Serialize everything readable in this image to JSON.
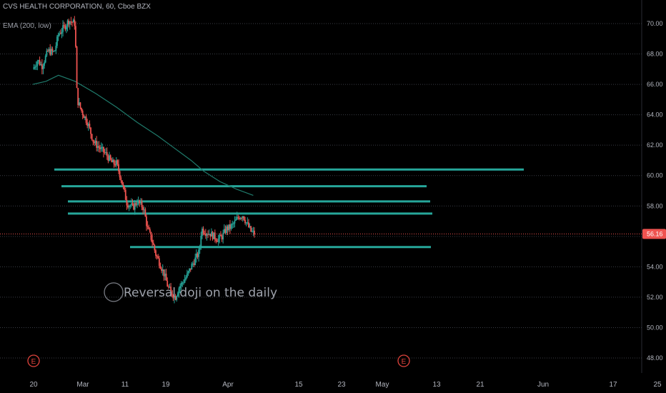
{
  "header": {
    "title": "CVS HEALTH CORPORATION, 60, Cboe BZX",
    "indicator": "EMA (200, low)"
  },
  "colors": {
    "background": "#000000",
    "up": "#26a69a",
    "down": "#ef5350",
    "ema": "#1f7a6b",
    "level": "#26a69a",
    "price_line": "#ef5350",
    "earnings": "#e0433c"
  },
  "chart_data": {
    "type": "candlestick",
    "ylim": [
      47,
      71
    ],
    "y_ticks": [
      "48.00",
      "50.00",
      "52.00",
      "54.00",
      "56.00",
      "58.00",
      "60.00",
      "62.00",
      "64.00",
      "66.00",
      "68.00",
      "70.00"
    ],
    "x_ticks": [
      "20",
      "Mar",
      "11",
      "19",
      "Apr",
      "15",
      "23",
      "May",
      "13",
      "21",
      "Jun",
      "17",
      "25"
    ],
    "grid": "horizontal",
    "last_price": 56.16,
    "last_price_label": "56.16",
    "annotation": "Reversal doji on the daily",
    "annotation_price": 52.0,
    "earnings_markers": [
      {
        "label": "E",
        "near_tick": "20"
      },
      {
        "label": "E",
        "near_tick": "May"
      }
    ],
    "levels": [
      60.4,
      59.3,
      58.3,
      57.5,
      55.3
    ],
    "ema_path": [
      [
        -0.02,
        66.0
      ],
      [
        0.3,
        66.2
      ],
      [
        0.6,
        66.6
      ],
      [
        1.0,
        66.2
      ],
      [
        1.5,
        65.4
      ],
      [
        2.0,
        64.5
      ],
      [
        2.5,
        63.5
      ],
      [
        3.0,
        62.6
      ],
      [
        3.4,
        61.8
      ],
      [
        3.8,
        61.0
      ],
      [
        4.1,
        60.3
      ],
      [
        4.5,
        59.6
      ],
      [
        4.9,
        59.1
      ],
      [
        5.3,
        58.7
      ]
    ],
    "price_path": [
      [
        -0.02,
        67.0
      ],
      [
        0.1,
        67.6
      ],
      [
        0.2,
        67.2
      ],
      [
        0.35,
        68.2
      ],
      [
        0.5,
        68.1
      ],
      [
        0.6,
        69.3
      ],
      [
        0.75,
        69.8
      ],
      [
        0.85,
        70.2
      ],
      [
        1.0,
        70.0
      ],
      [
        1.05,
        65.0
      ],
      [
        1.15,
        64.3
      ],
      [
        1.3,
        63.5
      ],
      [
        1.45,
        62.2
      ],
      [
        1.6,
        61.8
      ],
      [
        1.75,
        61.4
      ],
      [
        1.9,
        60.8
      ],
      [
        2.0,
        60.8
      ],
      [
        2.1,
        59.9
      ],
      [
        2.25,
        58.2
      ],
      [
        2.4,
        57.9
      ],
      [
        2.5,
        58.3
      ],
      [
        2.65,
        57.9
      ],
      [
        2.75,
        56.5
      ],
      [
        2.85,
        55.8
      ],
      [
        2.95,
        54.8
      ],
      [
        3.05,
        54.2
      ],
      [
        3.15,
        53.5
      ],
      [
        3.25,
        52.6
      ],
      [
        3.35,
        52.2
      ],
      [
        3.42,
        52.0
      ],
      [
        3.5,
        52.6
      ],
      [
        3.6,
        53.0
      ],
      [
        3.7,
        53.4
      ],
      [
        3.8,
        54.0
      ],
      [
        3.9,
        54.5
      ],
      [
        4.0,
        55.0
      ],
      [
        4.05,
        56.5
      ],
      [
        4.15,
        56.3
      ],
      [
        4.25,
        56.2
      ],
      [
        4.35,
        56.0
      ],
      [
        4.45,
        55.8
      ],
      [
        4.55,
        56.0
      ],
      [
        4.65,
        56.5
      ],
      [
        4.75,
        56.6
      ],
      [
        4.85,
        56.9
      ],
      [
        4.95,
        57.3
      ],
      [
        5.05,
        57.4
      ],
      [
        5.15,
        56.8
      ],
      [
        5.25,
        56.3
      ],
      [
        5.35,
        56.16
      ]
    ]
  }
}
